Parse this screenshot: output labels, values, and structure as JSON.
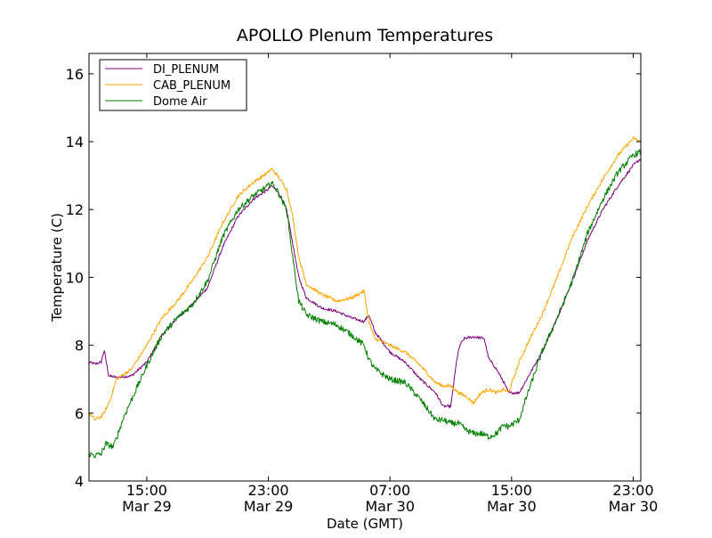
{
  "chart_data": {
    "type": "line",
    "title": "APOLLO Plenum Temperatures",
    "xlabel": "Date (GMT)",
    "ylabel": "Temperature (C)",
    "xlim_hours": [
      11.2,
      47.5
    ],
    "ylim": [
      4,
      16.6
    ],
    "legend_position": "top-left",
    "x_ticks": [
      {
        "hour": 15,
        "time": "15:00",
        "date": "Mar 29"
      },
      {
        "hour": 23,
        "time": "23:00",
        "date": "Mar 29"
      },
      {
        "hour": 31,
        "time": "07:00",
        "date": "Mar 30"
      },
      {
        "hour": 39,
        "time": "15:00",
        "date": "Mar 30"
      },
      {
        "hour": 47,
        "time": "23:00",
        "date": "Mar 30"
      }
    ],
    "y_ticks": [
      4,
      6,
      8,
      10,
      12,
      14,
      16
    ],
    "series": [
      {
        "name": "DI_PLENUM",
        "color": "#800080",
        "hours": [
          11.2,
          11.6,
          12.0,
          12.2,
          12.5,
          13.0,
          14.0,
          15.0,
          16.0,
          17.0,
          18.0,
          19.0,
          20.0,
          21.0,
          22.0,
          23.0,
          23.2,
          23.6,
          24.2,
          24.6,
          25.0,
          25.5,
          26.5,
          27.5,
          28.5,
          29.3,
          29.6,
          30.0,
          31.0,
          32.0,
          33.0,
          34.0,
          34.5,
          35.0,
          35.4,
          35.6,
          35.9,
          36.5,
          37.2,
          37.5,
          38.0,
          38.5,
          38.8,
          39.5,
          40.0,
          41.0,
          42.0,
          43.0,
          44.0,
          45.0,
          46.0,
          47.0,
          47.5
        ],
        "values": [
          7.5,
          7.45,
          7.5,
          7.85,
          7.1,
          7.05,
          7.1,
          7.5,
          8.3,
          8.8,
          9.2,
          9.7,
          10.9,
          11.8,
          12.3,
          12.6,
          12.7,
          12.55,
          12.0,
          11.0,
          10.0,
          9.4,
          9.1,
          9.0,
          8.8,
          8.7,
          8.9,
          8.4,
          7.8,
          7.5,
          7.0,
          6.6,
          6.2,
          6.2,
          7.6,
          8.0,
          8.2,
          8.25,
          8.2,
          7.6,
          7.3,
          6.9,
          6.6,
          6.6,
          7.0,
          7.8,
          8.8,
          9.9,
          11.1,
          12.0,
          12.7,
          13.3,
          13.5
        ]
      },
      {
        "name": "CAB_PLENUM",
        "color": "#FFA500",
        "hours": [
          11.2,
          11.6,
          12.0,
          12.2,
          12.6,
          13.0,
          14.0,
          15.0,
          16.0,
          17.0,
          18.0,
          19.0,
          20.0,
          21.0,
          22.0,
          23.0,
          23.2,
          23.6,
          24.2,
          24.6,
          25.0,
          25.5,
          26.5,
          27.5,
          28.5,
          29.3,
          29.6,
          30.0,
          31.0,
          32.0,
          33.0,
          34.0,
          34.5,
          35.0,
          35.5,
          36.0,
          36.5,
          37.0,
          37.5,
          38.0,
          38.5,
          38.8,
          39.5,
          40.0,
          41.0,
          42.0,
          43.0,
          44.0,
          45.0,
          46.0,
          47.0,
          47.5
        ],
        "values": [
          6.0,
          5.8,
          5.9,
          6.0,
          6.4,
          7.0,
          7.3,
          8.0,
          8.8,
          9.3,
          9.9,
          10.6,
          11.6,
          12.4,
          12.8,
          13.1,
          13.2,
          13.0,
          12.6,
          11.8,
          10.6,
          9.8,
          9.5,
          9.3,
          9.4,
          9.6,
          8.7,
          8.2,
          8.0,
          7.8,
          7.4,
          6.9,
          6.8,
          6.8,
          6.6,
          6.5,
          6.3,
          6.6,
          6.7,
          6.6,
          6.7,
          6.6,
          7.5,
          8.0,
          8.9,
          10.0,
          11.2,
          12.1,
          12.9,
          13.6,
          14.1,
          14.0
        ]
      },
      {
        "name": "Dome Air",
        "color": "#008000",
        "hours": [
          11.2,
          11.6,
          12.0,
          12.3,
          12.8,
          13.5,
          14.0,
          15.0,
          16.0,
          17.0,
          18.0,
          19.0,
          20.0,
          21.0,
          22.0,
          23.0,
          23.2,
          23.6,
          24.2,
          24.6,
          25.0,
          25.5,
          26.5,
          27.5,
          28.5,
          29.3,
          29.6,
          30.0,
          31.0,
          32.0,
          33.0,
          33.5,
          34.0,
          34.5,
          35.0,
          35.5,
          36.0,
          36.5,
          37.0,
          37.5,
          38.0,
          38.5,
          38.8,
          39.5,
          40.0,
          41.0,
          42.0,
          43.0,
          44.0,
          45.0,
          46.0,
          47.0,
          47.5
        ],
        "values": [
          4.8,
          4.75,
          4.8,
          5.1,
          5.0,
          5.9,
          6.4,
          7.4,
          8.3,
          8.8,
          9.2,
          9.9,
          11.2,
          12.0,
          12.4,
          12.7,
          12.8,
          12.55,
          12.0,
          10.6,
          9.3,
          8.9,
          8.7,
          8.6,
          8.3,
          8.0,
          7.6,
          7.3,
          7.0,
          6.9,
          6.4,
          6.1,
          5.8,
          5.8,
          5.7,
          5.7,
          5.5,
          5.4,
          5.4,
          5.3,
          5.4,
          5.65,
          5.6,
          5.8,
          6.5,
          7.8,
          8.8,
          9.9,
          11.3,
          12.3,
          13.1,
          13.6,
          13.7
        ]
      }
    ]
  }
}
